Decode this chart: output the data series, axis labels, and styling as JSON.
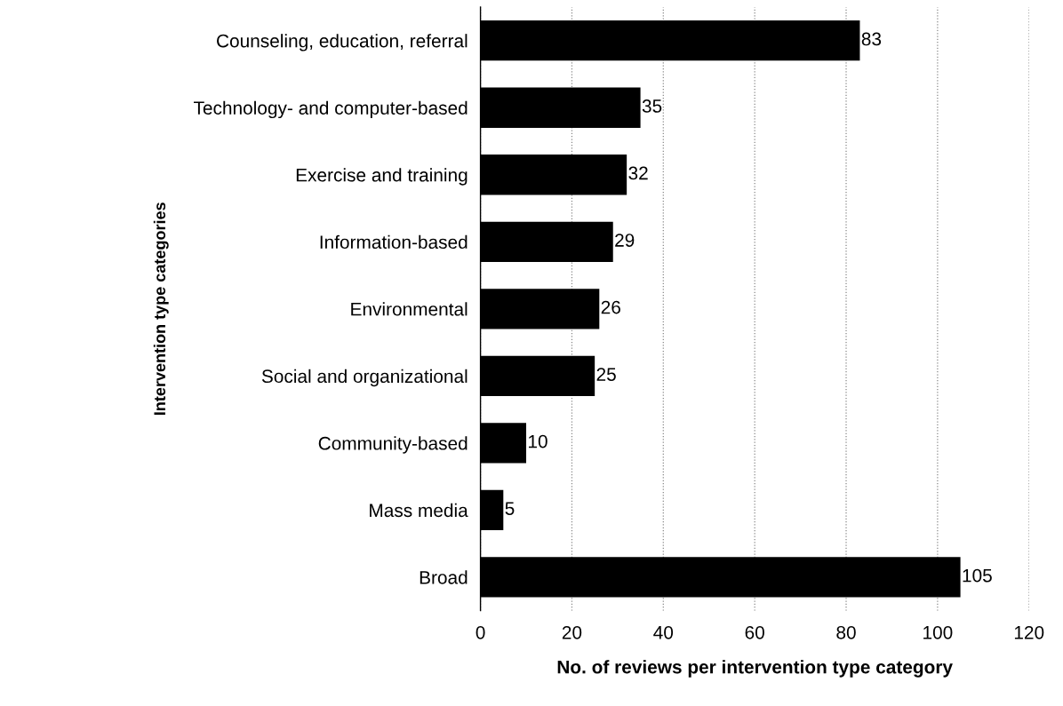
{
  "chart_data": {
    "type": "bar",
    "orientation": "horizontal",
    "xlabel": "No. of reviews per intervention type category",
    "ylabel": "Intervention type categories",
    "categories": [
      "Counseling, education, referral",
      "Technology- and computer-based",
      "Exercise and training",
      "Information-based",
      "Environmental",
      "Social and organizational",
      "Community-based",
      "Mass media",
      "Broad"
    ],
    "values": [
      83,
      35,
      32,
      29,
      26,
      25,
      10,
      5,
      105
    ],
    "color": "#000000",
    "xlim": [
      0,
      120
    ],
    "xticks": [
      0,
      20,
      40,
      60,
      80,
      100,
      120
    ],
    "grid": "x",
    "data_labels": true,
    "legend": false
  }
}
